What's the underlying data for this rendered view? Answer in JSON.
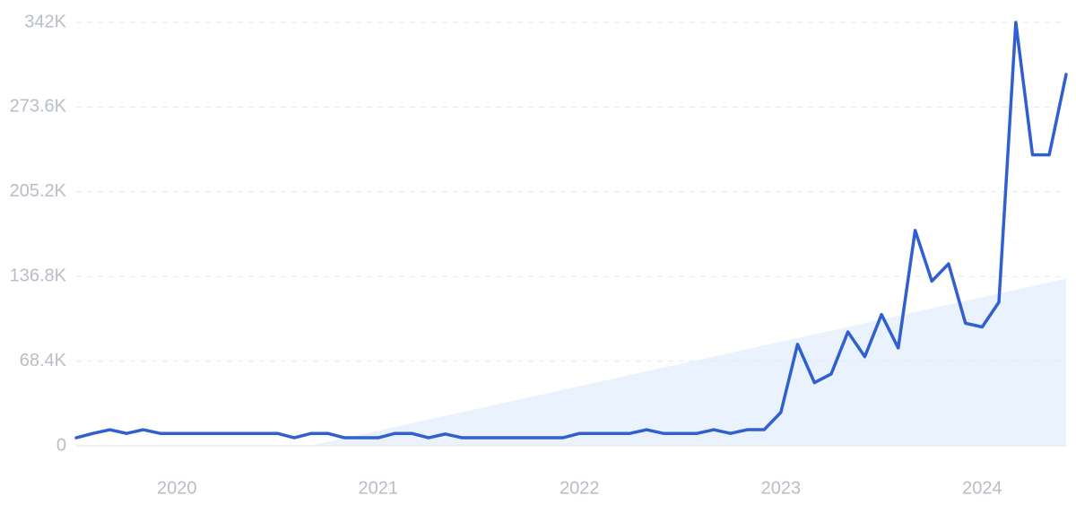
{
  "chart_data": {
    "type": "line",
    "x": [
      2019.5,
      2019.583,
      2019.667,
      2019.75,
      2019.833,
      2019.917,
      2020,
      2020.083,
      2020.167,
      2020.25,
      2020.333,
      2020.417,
      2020.5,
      2020.583,
      2020.667,
      2020.75,
      2020.833,
      2020.917,
      2021,
      2021.083,
      2021.167,
      2021.25,
      2021.333,
      2021.417,
      2021.5,
      2021.583,
      2021.667,
      2021.75,
      2021.833,
      2021.917,
      2022,
      2022.083,
      2022.167,
      2022.25,
      2022.333,
      2022.417,
      2022.5,
      2022.583,
      2022.667,
      2022.75,
      2022.833,
      2022.917,
      2023,
      2023.083,
      2023.167,
      2023.25,
      2023.333,
      2023.417,
      2023.5,
      2023.583,
      2023.667,
      2023.75,
      2023.833,
      2023.917,
      2024,
      2024.083,
      2024.167,
      2024.25,
      2024.333,
      2024.417
    ],
    "series": [
      {
        "color": "#2f5fd0",
        "values": [
          6500,
          10000,
          13000,
          10000,
          13000,
          10000,
          10000,
          10000,
          10000,
          10000,
          10000,
          10000,
          10000,
          6500,
          10000,
          10000,
          6500,
          6500,
          6500,
          10000,
          10000,
          6500,
          9500,
          6500,
          6500,
          6500,
          6500,
          6500,
          6500,
          6500,
          10000,
          10000,
          10000,
          10000,
          13000,
          10000,
          10000,
          10000,
          13000,
          10000,
          13000,
          13000,
          27000,
          82000,
          51000,
          58000,
          92000,
          72000,
          106000,
          79000,
          174000,
          133000,
          147000,
          99000,
          96000,
          116000,
          342000,
          235000,
          235000,
          300000
        ]
      }
    ],
    "trend": {
      "color": "#dce9fb",
      "x": [
        2020.66,
        2024.417
      ],
      "values": [
        0,
        135000
      ]
    },
    "xlim": [
      2019.5,
      2024.417
    ],
    "xticks": [
      2020,
      2021,
      2022,
      2023,
      2024
    ],
    "ylim": [
      0,
      342000
    ],
    "yticks": [
      0,
      {
        "value": 68400,
        "label": "68.4K"
      },
      {
        "value": 136800,
        "label": "136.8K"
      },
      {
        "value": 205200,
        "label": "205.2K"
      },
      {
        "value": 273600,
        "label": "273.6K"
      },
      {
        "value": 342000,
        "label": "342K"
      }
    ],
    "grid": true
  }
}
